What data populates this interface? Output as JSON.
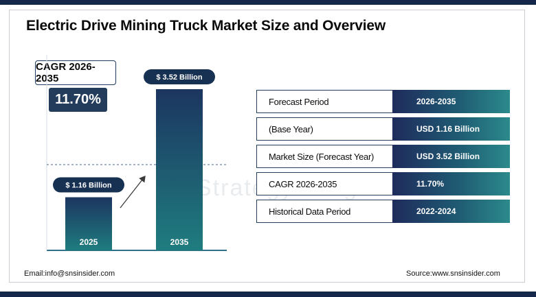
{
  "title": "Electric Drive Mining Truck Market Size and Overview",
  "watermark": "Strategy Insights",
  "cagr": {
    "label": "CAGR 2026-2035",
    "value": "11.70%"
  },
  "chart_data": {
    "type": "bar",
    "categories": [
      "2025",
      "2035"
    ],
    "values": [
      1.16,
      3.52
    ],
    "data_labels": [
      "$ 1.16 Billion",
      "$ 3.52 Billion"
    ],
    "ylim": [
      0,
      3.52
    ],
    "colors": {
      "bar_top": "#1c3560",
      "bar_bottom": "#1f7d7f"
    }
  },
  "table": {
    "rows": [
      {
        "label": "Forecast Period",
        "value": "2026-2035"
      },
      {
        "label": "(Base Year)",
        "value": "USD 1.16 Billion"
      },
      {
        "label": "Market Size (Forecast Year)",
        "value": "USD 3.52 Billion"
      },
      {
        "label": "CAGR 2026-2035",
        "value": "11.70%"
      },
      {
        "label": "Historical Data Period",
        "value": "2022-2024"
      }
    ]
  },
  "footer": {
    "email": "Email:info@snsinsider.com",
    "source": "Source:www.snsinsider.com"
  }
}
